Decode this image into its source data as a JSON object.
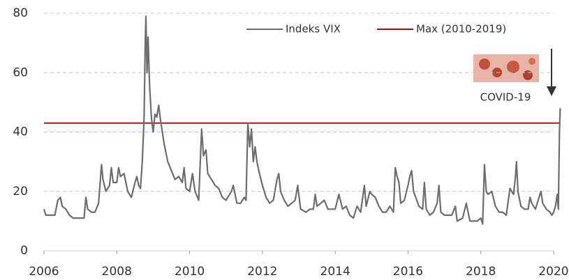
{
  "chart_data": {
    "type": "line",
    "xlim": [
      2006,
      2020
    ],
    "ylim": [
      0,
      80
    ],
    "xticks": [
      2006,
      2008,
      2010,
      2012,
      2014,
      2016,
      2018,
      2020
    ],
    "yticks": [
      0,
      20,
      40,
      60,
      80
    ],
    "grid": true,
    "annotation": "COVID-19",
    "series": [
      {
        "name": "Indeks VIX",
        "color": "#6d6d6d",
        "x": [
          2006.0,
          2006.05,
          2006.1,
          2006.2,
          2006.3,
          2006.38,
          2006.45,
          2006.5,
          2006.6,
          2006.7,
          2006.8,
          2006.9,
          2007.0,
          2007.1,
          2007.15,
          2007.2,
          2007.3,
          2007.4,
          2007.5,
          2007.58,
          2007.62,
          2007.7,
          2007.8,
          2007.85,
          2007.9,
          2008.0,
          2008.05,
          2008.1,
          2008.2,
          2008.3,
          2008.4,
          2008.5,
          2008.55,
          2008.6,
          2008.65,
          2008.7,
          2008.75,
          2008.78,
          2008.8,
          2008.83,
          2008.86,
          2008.9,
          2008.95,
          2009.0,
          2009.05,
          2009.1,
          2009.15,
          2009.2,
          2009.3,
          2009.35,
          2009.4,
          2009.5,
          2009.6,
          2009.7,
          2009.8,
          2009.85,
          2009.9,
          2010.0,
          2010.08,
          2010.15,
          2010.25,
          2010.33,
          2010.38,
          2010.45,
          2010.5,
          2010.6,
          2010.7,
          2010.8,
          2010.9,
          2011.0,
          2011.15,
          2011.2,
          2011.3,
          2011.4,
          2011.5,
          2011.55,
          2011.6,
          2011.65,
          2011.7,
          2011.75,
          2011.8,
          2011.85,
          2011.9,
          2012.0,
          2012.1,
          2012.2,
          2012.3,
          2012.4,
          2012.45,
          2012.5,
          2012.6,
          2012.7,
          2012.8,
          2012.9,
          2012.97,
          2013.05,
          2013.2,
          2013.3,
          2013.4,
          2013.45,
          2013.5,
          2013.6,
          2013.7,
          2013.8,
          2013.9,
          2014.0,
          2014.1,
          2014.2,
          2014.3,
          2014.4,
          2014.5,
          2014.6,
          2014.7,
          2014.8,
          2014.85,
          2014.95,
          2015.0,
          2015.1,
          2015.2,
          2015.3,
          2015.4,
          2015.5,
          2015.6,
          2015.65,
          2015.7,
          2015.75,
          2015.8,
          2015.9,
          2016.0,
          2016.05,
          2016.1,
          2016.15,
          2016.3,
          2016.4,
          2016.45,
          2016.5,
          2016.6,
          2016.7,
          2016.8,
          2016.85,
          2016.9,
          2017.0,
          2017.2,
          2017.3,
          2017.35,
          2017.5,
          2017.6,
          2017.7,
          2017.8,
          2017.9,
          2018.0,
          2018.05,
          2018.1,
          2018.15,
          2018.2,
          2018.3,
          2018.4,
          2018.5,
          2018.6,
          2018.7,
          2018.8,
          2018.85,
          2018.9,
          2018.95,
          2018.98,
          2019.02,
          2019.1,
          2019.2,
          2019.3,
          2019.35,
          2019.4,
          2019.5,
          2019.6,
          2019.65,
          2019.7,
          2019.8,
          2019.9,
          2019.95,
          2020.0,
          2020.05,
          2020.1,
          2020.13,
          2020.16,
          2020.18
        ],
        "values": [
          14,
          12,
          12,
          12,
          12,
          17,
          18,
          15,
          14,
          12,
          11,
          11,
          11,
          11,
          18,
          14,
          13,
          13,
          16,
          29,
          24,
          20,
          22,
          28,
          23,
          23,
          28,
          25,
          26,
          20,
          18,
          23,
          25,
          22,
          21,
          30,
          45,
          70,
          79,
          60,
          72,
          56,
          45,
          40,
          46,
          45,
          49,
          44,
          36,
          33,
          30,
          27,
          24,
          25,
          23,
          28,
          21,
          20,
          26,
          20,
          17,
          41,
          32,
          34,
          26,
          24,
          22,
          21,
          18,
          17,
          20,
          22,
          16,
          16,
          18,
          17,
          43,
          35,
          41,
          30,
          35,
          30,
          27,
          22,
          18,
          16,
          17,
          24,
          26,
          20,
          17,
          15,
          16,
          17,
          22,
          14,
          13,
          14,
          14,
          19,
          15,
          16,
          17,
          14,
          14,
          14,
          19,
          14,
          15,
          12,
          11,
          15,
          13,
          22,
          15,
          20,
          19,
          18,
          15,
          13,
          13,
          15,
          13,
          28,
          25,
          23,
          16,
          17,
          22,
          25,
          27,
          20,
          15,
          14,
          23,
          14,
          12,
          13,
          16,
          22,
          13,
          12,
          12,
          15,
          10,
          11,
          16,
          10,
          10,
          10,
          11,
          9,
          29,
          20,
          19,
          20,
          15,
          13,
          13,
          12,
          21,
          20,
          19,
          25,
          30,
          20,
          15,
          14,
          14,
          18,
          16,
          14,
          18,
          20,
          16,
          14,
          13,
          12,
          13,
          15,
          19,
          14,
          40,
          48
        ]
      },
      {
        "name": "Max (2010-2019)",
        "color": "#c00000",
        "x": [
          2006,
          2020.18
        ],
        "values": [
          43,
          43
        ]
      }
    ]
  }
}
